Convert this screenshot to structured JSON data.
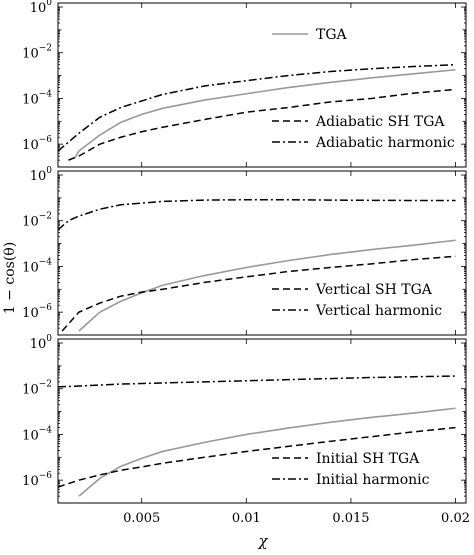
{
  "chart_data": [
    {
      "type": "line",
      "log_y": true,
      "xlim": [
        0.001,
        0.0205
      ],
      "ylim": [
        1e-07,
        1.5
      ],
      "legend": "right",
      "series": [
        {
          "name": "TGA",
          "color": "#999999",
          "dash": "solid",
          "x": [
            0.0018,
            0.002,
            0.003,
            0.004,
            0.005,
            0.006,
            0.008,
            0.01,
            0.012,
            0.014,
            0.016,
            0.018,
            0.02
          ],
          "y": [
            2.5e-07,
            5e-07,
            2.5e-06,
            9e-06,
            2e-05,
            3.7e-05,
            8.5e-05,
            0.00016,
            0.0003,
            0.0005,
            0.0008,
            0.0012,
            0.0018
          ]
        },
        {
          "name": "Adiabatic SH TGA",
          "color": "#000000",
          "dash": "dash",
          "x": [
            0.0015,
            0.002,
            0.003,
            0.004,
            0.005,
            0.006,
            0.008,
            0.01,
            0.012,
            0.014,
            0.016,
            0.018,
            0.02
          ],
          "y": [
            2e-07,
            3e-07,
            1e-06,
            2e-06,
            3.5e-06,
            5.5e-06,
            1.2e-05,
            2.5e-05,
            4e-05,
            7e-05,
            0.0001,
            0.00017,
            0.00025
          ]
        },
        {
          "name": "Adiabatic harmonic",
          "color": "#000000",
          "dash": "dashdot",
          "x": [
            0.001,
            0.002,
            0.003,
            0.004,
            0.006,
            0.008,
            0.01,
            0.012,
            0.014,
            0.016,
            0.018,
            0.02
          ],
          "y": [
            5e-07,
            3e-06,
            1.5e-05,
            4e-05,
            0.00015,
            0.00035,
            0.0006,
            0.001,
            0.0015,
            0.002,
            0.0025,
            0.003
          ]
        }
      ]
    },
    {
      "type": "line",
      "log_y": true,
      "xlim": [
        0.001,
        0.0205
      ],
      "ylim": [
        1e-07,
        1.5
      ],
      "legend": "lower right",
      "series": [
        {
          "name": "",
          "color": "#999999",
          "dash": "solid",
          "x": [
            0.002,
            0.003,
            0.004,
            0.005,
            0.006,
            0.008,
            0.01,
            0.012,
            0.014,
            0.016,
            0.018,
            0.02
          ],
          "y": [
            1.5e-07,
            1e-06,
            3e-06,
            7e-06,
            1.5e-05,
            4e-05,
            9e-05,
            0.00018,
            0.00033,
            0.00055,
            0.00085,
            0.0014
          ]
        },
        {
          "name": "Vertical SH TGA",
          "color": "#000000",
          "dash": "dash",
          "x": [
            0.0012,
            0.002,
            0.003,
            0.004,
            0.005,
            0.006,
            0.008,
            0.01,
            0.012,
            0.014,
            0.016,
            0.018,
            0.02
          ],
          "y": [
            1.5e-07,
            1e-06,
            2.5e-06,
            5e-06,
            7.5e-06,
            1e-05,
            2e-05,
            3.5e-05,
            6e-05,
            9e-05,
            0.00013,
            0.0002,
            0.00028
          ]
        },
        {
          "name": "Vertical harmonic",
          "color": "#000000",
          "dash": "dashdot",
          "x": [
            0.001,
            0.0015,
            0.002,
            0.003,
            0.004,
            0.006,
            0.008,
            0.01,
            0.012,
            0.014,
            0.016,
            0.018,
            0.02
          ],
          "y": [
            0.004,
            0.01,
            0.016,
            0.032,
            0.05,
            0.07,
            0.08,
            0.083,
            0.083,
            0.08,
            0.078,
            0.077,
            0.077
          ]
        }
      ]
    },
    {
      "type": "line",
      "log_y": true,
      "xlim": [
        0.001,
        0.0205
      ],
      "ylim": [
        1e-07,
        1.5
      ],
      "legend": "lower right",
      "series": [
        {
          "name": "",
          "color": "#999999",
          "dash": "solid",
          "x": [
            0.002,
            0.003,
            0.004,
            0.005,
            0.006,
            0.008,
            0.01,
            0.012,
            0.014,
            0.016,
            0.018,
            0.02
          ],
          "y": [
            2e-07,
            1.2e-06,
            4e-06,
            9e-06,
            1.8e-05,
            4.5e-05,
            0.0001,
            0.00019,
            0.00034,
            0.00056,
            0.00086,
            0.0014
          ]
        },
        {
          "name": "Initial SH TGA",
          "color": "#000000",
          "dash": "dash",
          "x": [
            0.001,
            0.002,
            0.003,
            0.004,
            0.005,
            0.006,
            0.008,
            0.01,
            0.012,
            0.014,
            0.016,
            0.018,
            0.02
          ],
          "y": [
            5e-07,
            1e-06,
            1.7e-06,
            2.7e-06,
            3.8e-06,
            5.5e-06,
            1e-05,
            1.8e-05,
            3e-05,
            5e-05,
            8e-05,
            0.00013,
            0.0002
          ]
        },
        {
          "name": "Initial harmonic",
          "color": "#000000",
          "dash": "dashdot",
          "x": [
            0.001,
            0.004,
            0.008,
            0.012,
            0.016,
            0.02
          ],
          "y": [
            0.012,
            0.016,
            0.02,
            0.025,
            0.031,
            0.036
          ]
        }
      ]
    }
  ],
  "axes": {
    "xlabel": "χ",
    "ylabel": "1 − cos(θ)",
    "x_ticks": [
      {
        "value": 0.005,
        "label": "0.005"
      },
      {
        "value": 0.01,
        "label": "0.01"
      },
      {
        "value": 0.015,
        "label": "0.015"
      },
      {
        "value": 0.02,
        "label": "0.02"
      }
    ],
    "y_ticks": [
      {
        "value": 1,
        "base": "10",
        "exp": "0"
      },
      {
        "value": 0.01,
        "base": "10",
        "exp": "−2"
      },
      {
        "value": 0.0001,
        "base": "10",
        "exp": "−4"
      },
      {
        "value": 1e-06,
        "base": "10",
        "exp": "−6"
      }
    ]
  }
}
